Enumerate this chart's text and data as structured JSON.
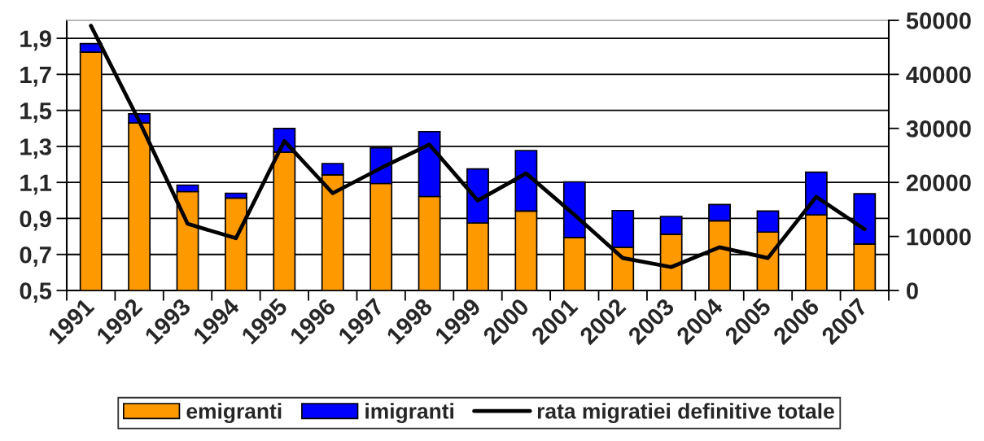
{
  "chart_data": {
    "type": "bar",
    "stacked": true,
    "categories": [
      "1991",
      "1992",
      "1993",
      "1994",
      "1995",
      "1996",
      "1997",
      "1998",
      "1999",
      "2000",
      "2001",
      "2002",
      "2003",
      "2004",
      "2005",
      "2006",
      "2007"
    ],
    "series": [
      {
        "name": "emigranti",
        "axis": "y2",
        "color": "#ff9900",
        "values": [
          44100,
          31000,
          18300,
          17100,
          25600,
          21400,
          19800,
          17400,
          12500,
          14700,
          9800,
          8000,
          10400,
          12900,
          10800,
          14000,
          8600
        ]
      },
      {
        "name": "imigranti",
        "axis": "y2",
        "color": "#0000ff",
        "values": [
          1600,
          1700,
          1200,
          900,
          4400,
          2100,
          6600,
          12000,
          10000,
          11200,
          10300,
          6800,
          3300,
          3000,
          3900,
          7900,
          9300
        ]
      },
      {
        "name": "rata migratiei definitive totale",
        "type": "line",
        "axis": "y",
        "color": "#000000",
        "values": [
          1.97,
          1.44,
          0.87,
          0.79,
          1.33,
          1.04,
          1.18,
          1.31,
          1.0,
          1.15,
          0.92,
          0.68,
          0.63,
          0.74,
          0.68,
          1.02,
          0.84
        ]
      }
    ],
    "ylim": [
      0.5,
      2.0
    ],
    "yticks": [
      {
        "value": 0.5,
        "label": "0,5"
      },
      {
        "value": 0.7,
        "label": "0,7"
      },
      {
        "value": 0.9,
        "label": "0,9"
      },
      {
        "value": 1.1,
        "label": "1,1"
      },
      {
        "value": 1.3,
        "label": "1,3"
      },
      {
        "value": 1.5,
        "label": "1,5"
      },
      {
        "value": 1.7,
        "label": "1,7"
      },
      {
        "value": 1.9,
        "label": "1,9"
      }
    ],
    "y2lim": [
      0,
      50000
    ],
    "y2ticks": [
      0,
      10000,
      20000,
      30000,
      40000,
      50000
    ],
    "grid": "y",
    "legend": "bottom"
  }
}
